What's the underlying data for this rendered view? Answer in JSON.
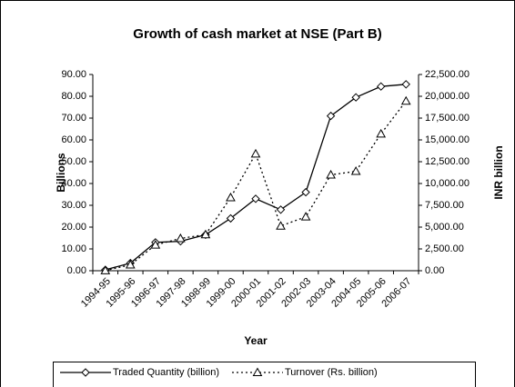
{
  "chart_data": {
    "type": "line",
    "title": "Growth of cash market at NSE (Part B)",
    "x_label": "Year",
    "y_label": "Billions",
    "y2_label": "INR billion",
    "categories": [
      "1994-95",
      "1995-96",
      "1996-97",
      "1997-98",
      "1998-99",
      "1999-00",
      "2000-01",
      "2001-02",
      "2002-03",
      "2003-04",
      "2004-05",
      "2005-06",
      "2006-07"
    ],
    "series": [
      {
        "name": "Traded Quantity (billion)",
        "color": "#000000",
        "marker": "diamond",
        "line_style": "solid",
        "axis": "y",
        "values": [
          0.4,
          3.5,
          13,
          13.5,
          16.5,
          24,
          33,
          28,
          36,
          71,
          79.5,
          84.5,
          85.5
        ]
      },
      {
        "name": "Turnover (Rs. billion)",
        "color": "#000000",
        "marker": "triangle",
        "line_style": "dotted",
        "axis": "y2",
        "values": [
          18,
          673,
          2955,
          3703,
          4145,
          8390,
          13395,
          5131,
          6179,
          10995,
          11400,
          15692,
          19453
        ]
      }
    ],
    "ylim": [
      0,
      90
    ],
    "yticks": [
      {
        "value": 0,
        "label": "0.00"
      },
      {
        "value": 10,
        "label": "10.00"
      },
      {
        "value": 20,
        "label": "20.00"
      },
      {
        "value": 30,
        "label": "30.00"
      },
      {
        "value": 40,
        "label": "40.00"
      },
      {
        "value": 50,
        "label": "50.00"
      },
      {
        "value": 60,
        "label": "60.00"
      },
      {
        "value": 70,
        "label": "70.00"
      },
      {
        "value": 80,
        "label": "80.00"
      },
      {
        "value": 90,
        "label": "90.00"
      }
    ],
    "y2lim": [
      0,
      22500
    ],
    "y2ticks": [
      {
        "value": 0,
        "label": "0.00"
      },
      {
        "value": 2500,
        "label": "2,500.00"
      },
      {
        "value": 5000,
        "label": "5,000.00"
      },
      {
        "value": 7500,
        "label": "7,500.00"
      },
      {
        "value": 10000,
        "label": "10,000.00"
      },
      {
        "value": 12500,
        "label": "12,500.00"
      },
      {
        "value": 15000,
        "label": "15,000.00"
      },
      {
        "value": 17500,
        "label": "17,500.00"
      },
      {
        "value": 20000,
        "label": "20,000.00"
      },
      {
        "value": 22500,
        "label": "22,500.00"
      }
    ],
    "grid": false,
    "legend": "bottom"
  }
}
